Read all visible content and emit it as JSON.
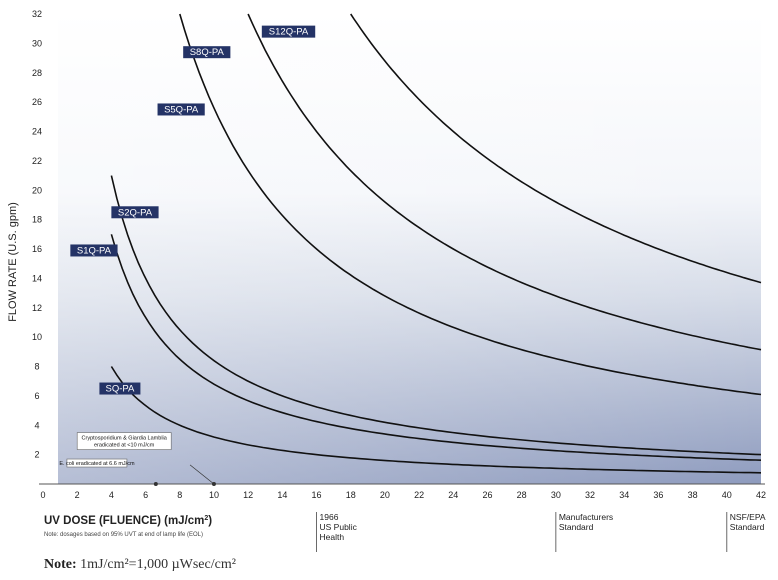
{
  "chart_data": {
    "type": "line",
    "title": "",
    "ylabel": "FLOW RATE (U.S. gpm)",
    "xlabel_prefix": "UV DOSE (FLUENCE) (mJ/cm",
    "xlabel_sup": "2",
    "xlabel_suffix": ")",
    "xlabel_note": "Note: dosages based on 95% UVT at end of lamp life (EOL)",
    "xlim": [
      0,
      42
    ],
    "ylim": [
      0,
      32
    ],
    "xticks": [
      "0",
      "2",
      "4",
      "6",
      "8",
      "10",
      "12",
      "14",
      "16",
      "18",
      "20",
      "22",
      "24",
      "26",
      "28",
      "30",
      "32",
      "34",
      "36",
      "38",
      "40",
      "42"
    ],
    "yticks": [
      "2",
      "4",
      "6",
      "8",
      "10",
      "12",
      "14",
      "16",
      "18",
      "20",
      "22",
      "24",
      "26",
      "28",
      "30",
      "32"
    ],
    "grid": false,
    "series": [
      {
        "name": "SQ-PA",
        "x": [
          4,
          6,
          8,
          10,
          16,
          20,
          30,
          40,
          42
        ],
        "y": [
          8,
          5.3,
          4,
          3.2,
          2,
          1.6,
          1.07,
          0.8,
          0.76
        ]
      },
      {
        "name": "S1Q-PA",
        "x": [
          4,
          6,
          8,
          10,
          16,
          20,
          30,
          40,
          42
        ],
        "y": [
          17,
          11.3,
          8.5,
          6.8,
          4.25,
          3.4,
          2.27,
          1.7,
          1.62
        ]
      },
      {
        "name": "S2Q-PA",
        "x": [
          4,
          6,
          8,
          10,
          16,
          20,
          30,
          40,
          42
        ],
        "y": [
          21,
          14,
          10.5,
          8.4,
          5.25,
          4.2,
          2.8,
          2.1,
          2.0
        ]
      },
      {
        "name": "S5Q-PA",
        "x": [
          8,
          10,
          12,
          16,
          20,
          30,
          40,
          42
        ],
        "y": [
          32,
          25.6,
          21.3,
          16,
          12.8,
          8.5,
          6.4,
          6.1
        ]
      },
      {
        "name": "S8Q-PA",
        "x": [
          12,
          14,
          16,
          20,
          30,
          40,
          42
        ],
        "y": [
          32,
          27.4,
          24,
          19.2,
          12.8,
          9.6,
          9.14
        ]
      },
      {
        "name": "S12Q-PA",
        "x": [
          18,
          20,
          24,
          30,
          36,
          40,
          42
        ],
        "y": [
          32,
          28.8,
          24,
          19.2,
          16,
          14.4,
          13.7
        ]
      }
    ],
    "annotations": [
      {
        "text_line1": "Cryptosporidium & Giardia Lamblia",
        "text_line2": "eradicated at <10 mJ/cm",
        "x": 10
      },
      {
        "text": "E. coli eradicated at 6.6 mJ/cm",
        "x": 6.6
      }
    ],
    "standards": [
      {
        "x": 16,
        "lines": [
          "1966",
          "US Public",
          "Health"
        ]
      },
      {
        "x": 30,
        "lines": [
          "Manufacturers",
          "Standard"
        ]
      },
      {
        "x": 40,
        "lines": [
          "NSF/EPA",
          "Standard"
        ]
      }
    ]
  },
  "note": {
    "bold": "Note:",
    "text": "1mJ/cm²=1,000 µWsec/cm²"
  }
}
